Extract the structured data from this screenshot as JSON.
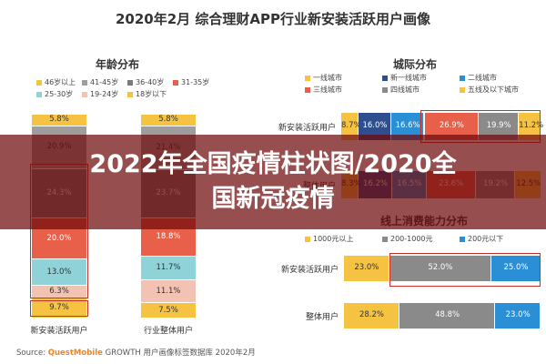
{
  "page_title": "2020年2月 综合理财APP行业新安装活跃用户画像",
  "banner": {
    "line1": "2022年全国疫情柱状图/2020全",
    "line2": "国新冠疫情"
  },
  "source": {
    "prefix": "Source:",
    "brand": "QuestMobile",
    "suffix": "GROWTH 用户画像标签数据库 2020年2月"
  },
  "chart_data": [
    {
      "type": "bar",
      "title": "年龄分布",
      "stacked": true,
      "orientation": "vertical",
      "categories": [
        "新安装活跃用户",
        "行业整体用户"
      ],
      "series": [
        {
          "name": "18岁以下",
          "color": "#f5c242",
          "values": [
            9.7,
            7.5
          ]
        },
        {
          "name": "19-24岁",
          "color": "#f2c3b2",
          "values": [
            6.3,
            11.1
          ]
        },
        {
          "name": "25-30岁",
          "color": "#8fd2d8",
          "values": [
            13.0,
            11.7
          ]
        },
        {
          "name": "31-35岁",
          "color": "#e8604a",
          "values": [
            20.0,
            18.8
          ]
        },
        {
          "name": "36-40岁",
          "color": "#7a7a7a",
          "values": [
            24.3,
            23.7
          ]
        },
        {
          "name": "41-45岁",
          "color": "#9e9e9e",
          "values": [
            20.9,
            21.4
          ]
        },
        {
          "name": "46岁以上",
          "color": "#f5c242",
          "values": [
            5.8,
            5.8
          ]
        }
      ],
      "legend_order": [
        "46岁以上",
        "41-45岁",
        "36-40岁",
        "31-35岁",
        "25-30岁",
        "19-24岁",
        "18岁以下"
      ],
      "legend_position": "top",
      "ylim": [
        0,
        100
      ]
    },
    {
      "type": "bar",
      "title": "城际分布",
      "stacked": true,
      "orientation": "horizontal",
      "categories": [
        "新安装活跃用户",
        "整体用户"
      ],
      "series": [
        {
          "name": "一线城市",
          "color": "#f5c242",
          "values": [
            8.7,
            8.3
          ]
        },
        {
          "name": "新一线城市",
          "color": "#2e4e8f",
          "values": [
            16.0,
            16.2
          ]
        },
        {
          "name": "二线城市",
          "color": "#2b8fd6",
          "values": [
            16.6,
            16.5
          ]
        },
        {
          "name": "三线城市",
          "color": "#e8604a",
          "values": [
            26.9,
            23.6
          ]
        },
        {
          "name": "四线城市",
          "color": "#8a8a8a",
          "values": [
            19.9,
            19.2
          ]
        },
        {
          "name": "五线及以下城市",
          "color": "#f5c242",
          "values": [
            11.2,
            12.5
          ]
        }
      ],
      "legend_position": "top",
      "xlim": [
        0,
        100
      ]
    },
    {
      "type": "bar",
      "title": "线上消费能力分布",
      "stacked": true,
      "orientation": "horizontal",
      "categories": [
        "新安装活跃用户",
        "整体用户"
      ],
      "series": [
        {
          "name": "1000元以上",
          "color": "#f5c242",
          "values": [
            23.0,
            28.2
          ]
        },
        {
          "name": "200-1000元",
          "color": "#8a8a8a",
          "values": [
            52.0,
            48.8
          ]
        },
        {
          "name": "200元以下",
          "color": "#2b8fd6",
          "values": [
            25.0,
            23.0
          ]
        }
      ],
      "legend_position": "top",
      "xlim": [
        0,
        100
      ]
    }
  ]
}
